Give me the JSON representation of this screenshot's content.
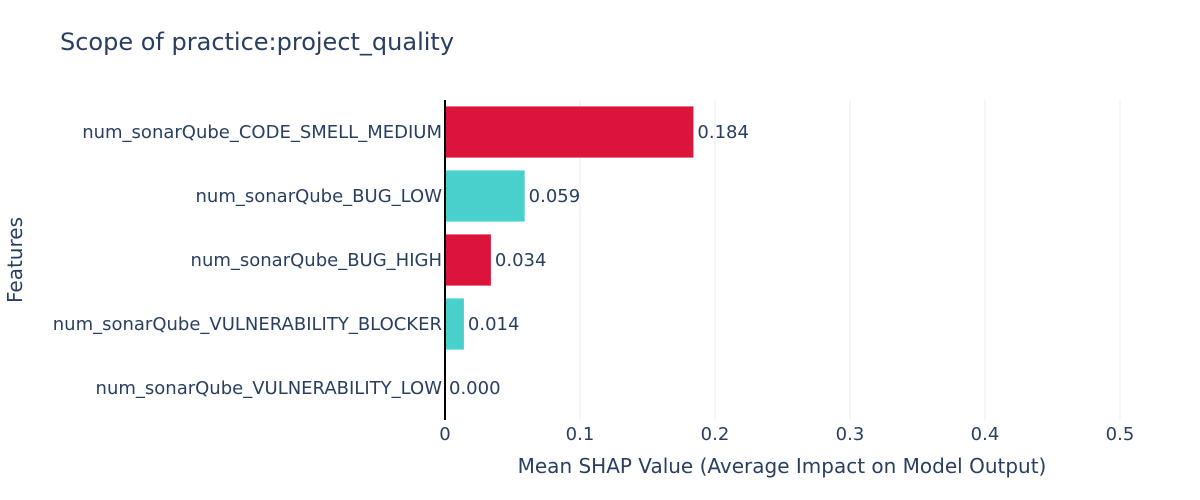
{
  "chart_data": {
    "type": "bar",
    "orientation": "horizontal",
    "title": "Scope of practice:project_quality",
    "xlabel": "Mean SHAP Value (Average Impact on Model Output)",
    "ylabel": "Features",
    "xlim": [
      0,
      0.5
    ],
    "xticks": [
      0,
      0.1,
      0.2,
      0.3,
      0.4,
      0.5
    ],
    "xtick_labels": [
      "0",
      "0.1",
      "0.2",
      "0.3",
      "0.4",
      "0.5"
    ],
    "grid": "vertical",
    "categories": [
      "num_sonarQube_CODE_SMELL_MEDIUM",
      "num_sonarQube_BUG_LOW",
      "num_sonarQube_BUG_HIGH",
      "num_sonarQube_VULNERABILITY_BLOCKER",
      "num_sonarQube_VULNERABILITY_LOW"
    ],
    "values": [
      0.184,
      0.059,
      0.034,
      0.014,
      0.0
    ],
    "value_labels": [
      "0.184",
      "0.059",
      "0.034",
      "0.014",
      "0.000"
    ],
    "colors": [
      "#dc143c",
      "#48d1cc",
      "#dc143c",
      "#48d1cc",
      "#48d1cc"
    ]
  }
}
